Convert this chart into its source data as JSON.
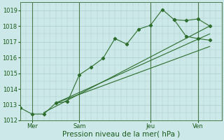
{
  "background_color": "#cce8e8",
  "grid_color": "#aacece",
  "line_color": "#2d6e2d",
  "ylim": [
    1012,
    1019.5
  ],
  "yticks": [
    1012,
    1013,
    1014,
    1015,
    1016,
    1017,
    1018,
    1019
  ],
  "xlabel": "Pression niveau de la mer( hPa )",
  "xlabel_fontsize": 7.5,
  "tick_fontsize": 6,
  "day_labels": [
    "Mer",
    "Sam",
    "Jeu",
    "Ven"
  ],
  "day_positions": [
    1,
    5,
    11,
    15
  ],
  "vline_positions": [
    1,
    5,
    11,
    15
  ],
  "xlim": [
    0,
    17
  ],
  "main_line_x": [
    0,
    1,
    2,
    3,
    4,
    5,
    6,
    7,
    8,
    9,
    10,
    11,
    12,
    13,
    14,
    15,
    16
  ],
  "main_line_y": [
    1012.8,
    1012.4,
    1012.4,
    1013.1,
    1013.2,
    1014.9,
    1015.4,
    1015.95,
    1017.2,
    1016.85,
    1017.8,
    1018.05,
    1019.05,
    1018.4,
    1017.35,
    1017.2,
    1017.1
  ],
  "trend1_x": [
    2,
    16
  ],
  "trend1_y": [
    1012.5,
    1018.0
  ],
  "trend2_x": [
    3,
    16
  ],
  "trend2_y": [
    1013.1,
    1017.5
  ],
  "trend3_x": [
    3,
    16
  ],
  "trend3_y": [
    1013.1,
    1016.7
  ],
  "right_line_x": [
    13,
    14,
    15,
    16
  ],
  "right_line_y": [
    1018.4,
    1018.35,
    1018.45,
    1018.0
  ],
  "figsize": [
    3.2,
    2.0
  ],
  "dpi": 100
}
